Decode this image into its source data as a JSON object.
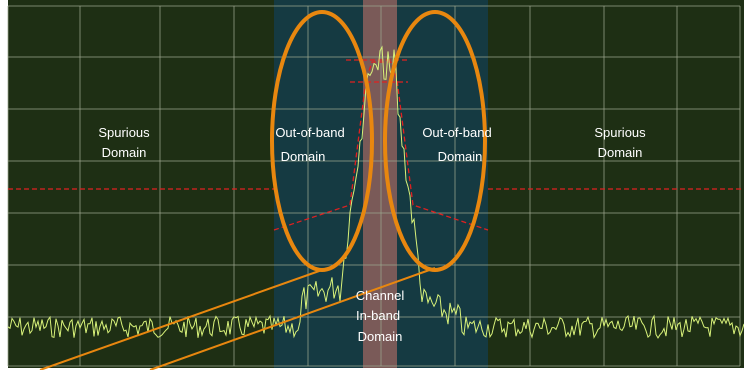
{
  "regions": {
    "spurious_left": {
      "line1": "Spurious",
      "line2": "Domain"
    },
    "oob_left": {
      "line1": "Out-of-band",
      "line2": "Domain"
    },
    "oob_right": {
      "line1": "Out-of-band",
      "line2": "Domain"
    },
    "spurious_right": {
      "line1": "Spurious",
      "line2": "Domain"
    },
    "channel": {
      "line1": "Channel",
      "line2": "In-band",
      "line3": "Domain"
    }
  },
  "colors": {
    "spurious_background": "#1e2f14",
    "oob_background": "#153a42",
    "channel_band": "#7a5a58",
    "grid": "#9aa58c",
    "spectrum_trace": "#d8f27a",
    "limit_line": "#e02020",
    "ellipse_outline": "#e8870f",
    "callout_line": "#e8870f"
  },
  "icons": {
    "limit_line": "dashed-red-line",
    "highlight": "orange-ellipse"
  }
}
